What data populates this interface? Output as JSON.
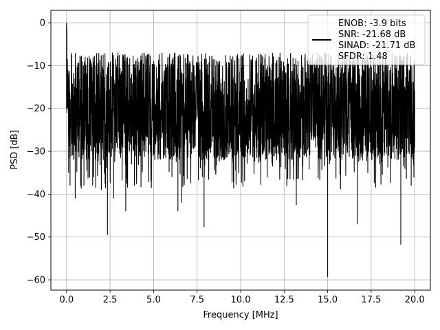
{
  "chart_data": {
    "type": "line",
    "xlabel": "Frequency [MHz]",
    "ylabel": "PSD [dB]",
    "xlim": [
      -0.9,
      20.9
    ],
    "ylim": [
      -62.4,
      2.9
    ],
    "x_ticks": [
      0.0,
      2.5,
      5.0,
      7.5,
      10.0,
      12.5,
      15.0,
      17.5,
      20.0
    ],
    "x_tick_labels": [
      "0.0",
      "2.5",
      "5.0",
      "7.5",
      "10.0",
      "12.5",
      "15.0",
      "17.5",
      "20.0"
    ],
    "y_ticks": [
      0,
      -10,
      -20,
      -30,
      -40,
      -50,
      -60
    ],
    "y_tick_labels": [
      "0",
      "−10",
      "−20",
      "−30",
      "−40",
      "−50",
      "−60"
    ],
    "grid": true,
    "legend_position": "top-right",
    "legend_entries": [
      "ENOB: -3.9 bits",
      "SNR: -21.68 dB",
      "SINAD: -21.71 dB",
      "SFDR: 1.48"
    ],
    "line_color": "#000000",
    "series": [
      {
        "points_x": [
          0.0,
          0.02,
          0.05,
          0.08,
          0.12,
          0.2,
          0.5,
          1.0,
          1.2,
          1.5,
          2.0,
          2.35,
          2.7,
          3.4,
          3.9,
          6.4,
          6.6,
          7.8,
          7.9,
          13.2,
          15.0,
          15.05,
          16.7,
          19.2,
          19.8,
          20.0
        ],
        "points_y": [
          0.0,
          -7.0,
          -12.0,
          -18.0,
          -35.0,
          -38.0,
          -41.0,
          -38.0,
          -13.0,
          -38.0,
          -39.0,
          -49.5,
          -41.0,
          -44.0,
          -38.0,
          -44.0,
          -42.0,
          -36.0,
          -47.7,
          -42.5,
          -59.3,
          -19.0,
          -47.0,
          -51.8,
          -38.0,
          -29.0
        ]
      }
    ]
  }
}
